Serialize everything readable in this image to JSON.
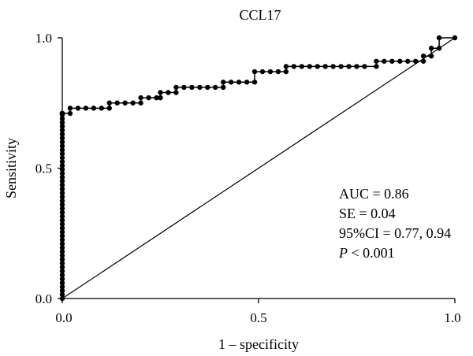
{
  "chart_data": {
    "type": "line",
    "title": "CCL17",
    "xlabel": "1 – specificity",
    "ylabel": "Sensitivity",
    "xlim": [
      0,
      1
    ],
    "ylim": [
      0,
      1
    ],
    "xticks": [
      "0.0",
      "0.5",
      "1.0"
    ],
    "yticks": [
      "0.0",
      "0.5",
      "1.0"
    ],
    "grid": false,
    "reference_line": {
      "x": [
        0,
        1
      ],
      "y": [
        0,
        1
      ]
    },
    "series": [
      {
        "x": [
          0,
          0,
          0,
          0,
          0,
          0,
          0,
          0,
          0,
          0,
          0,
          0,
          0,
          0,
          0,
          0,
          0,
          0,
          0,
          0,
          0,
          0,
          0,
          0,
          0,
          0,
          0,
          0,
          0,
          0,
          0,
          0,
          0,
          0,
          0,
          0,
          0,
          0,
          0,
          0,
          0,
          0,
          0,
          0,
          0,
          0,
          0,
          0,
          0,
          0,
          0,
          0,
          0,
          0,
          0,
          0,
          0.02,
          0.02,
          0.04,
          0.06,
          0.08,
          0.1,
          0.12,
          0.12,
          0.14,
          0.16,
          0.18,
          0.2,
          0.2,
          0.22,
          0.24,
          0.25,
          0.25,
          0.27,
          0.29,
          0.29,
          0.31,
          0.33,
          0.35,
          0.37,
          0.39,
          0.41,
          0.41,
          0.43,
          0.45,
          0.47,
          0.49,
          0.49,
          0.51,
          0.53,
          0.55,
          0.57,
          0.57,
          0.59,
          0.61,
          0.63,
          0.65,
          0.67,
          0.69,
          0.71,
          0.73,
          0.75,
          0.77,
          0.8,
          0.8,
          0.82,
          0.84,
          0.86,
          0.88,
          0.9,
          0.92,
          0.92,
          0.94,
          0.94,
          0.96,
          0.96,
          1
        ],
        "y": [
          0,
          0.015,
          0.03,
          0.045,
          0.06,
          0.075,
          0.09,
          0.105,
          0.12,
          0.135,
          0.15,
          0.165,
          0.18,
          0.195,
          0.21,
          0.225,
          0.24,
          0.255,
          0.27,
          0.285,
          0.3,
          0.315,
          0.33,
          0.345,
          0.36,
          0.375,
          0.39,
          0.405,
          0.42,
          0.435,
          0.45,
          0.465,
          0.48,
          0.495,
          0.51,
          0.525,
          0.54,
          0.555,
          0.57,
          0.585,
          0.6,
          0.615,
          0.63,
          0.645,
          0.66,
          0.675,
          0.69,
          0.705,
          0.71,
          0.71,
          0.71,
          0.71,
          0.71,
          0.71,
          0.71,
          0.71,
          0.71,
          0.73,
          0.73,
          0.73,
          0.73,
          0.73,
          0.73,
          0.75,
          0.75,
          0.75,
          0.75,
          0.75,
          0.77,
          0.77,
          0.77,
          0.77,
          0.79,
          0.79,
          0.79,
          0.81,
          0.81,
          0.81,
          0.81,
          0.81,
          0.81,
          0.81,
          0.83,
          0.83,
          0.83,
          0.83,
          0.83,
          0.87,
          0.87,
          0.87,
          0.87,
          0.87,
          0.89,
          0.89,
          0.89,
          0.89,
          0.89,
          0.89,
          0.89,
          0.89,
          0.89,
          0.89,
          0.89,
          0.89,
          0.91,
          0.91,
          0.91,
          0.91,
          0.91,
          0.91,
          0.91,
          0.93,
          0.93,
          0.96,
          0.96,
          1,
          1
        ]
      }
    ],
    "annotations": {
      "auc": "AUC = 0.86",
      "se": "SE = 0.04",
      "ci": "95%CI = 0.77, 0.94",
      "p_symbol": "P",
      "p_rest": " < 0.001"
    }
  }
}
